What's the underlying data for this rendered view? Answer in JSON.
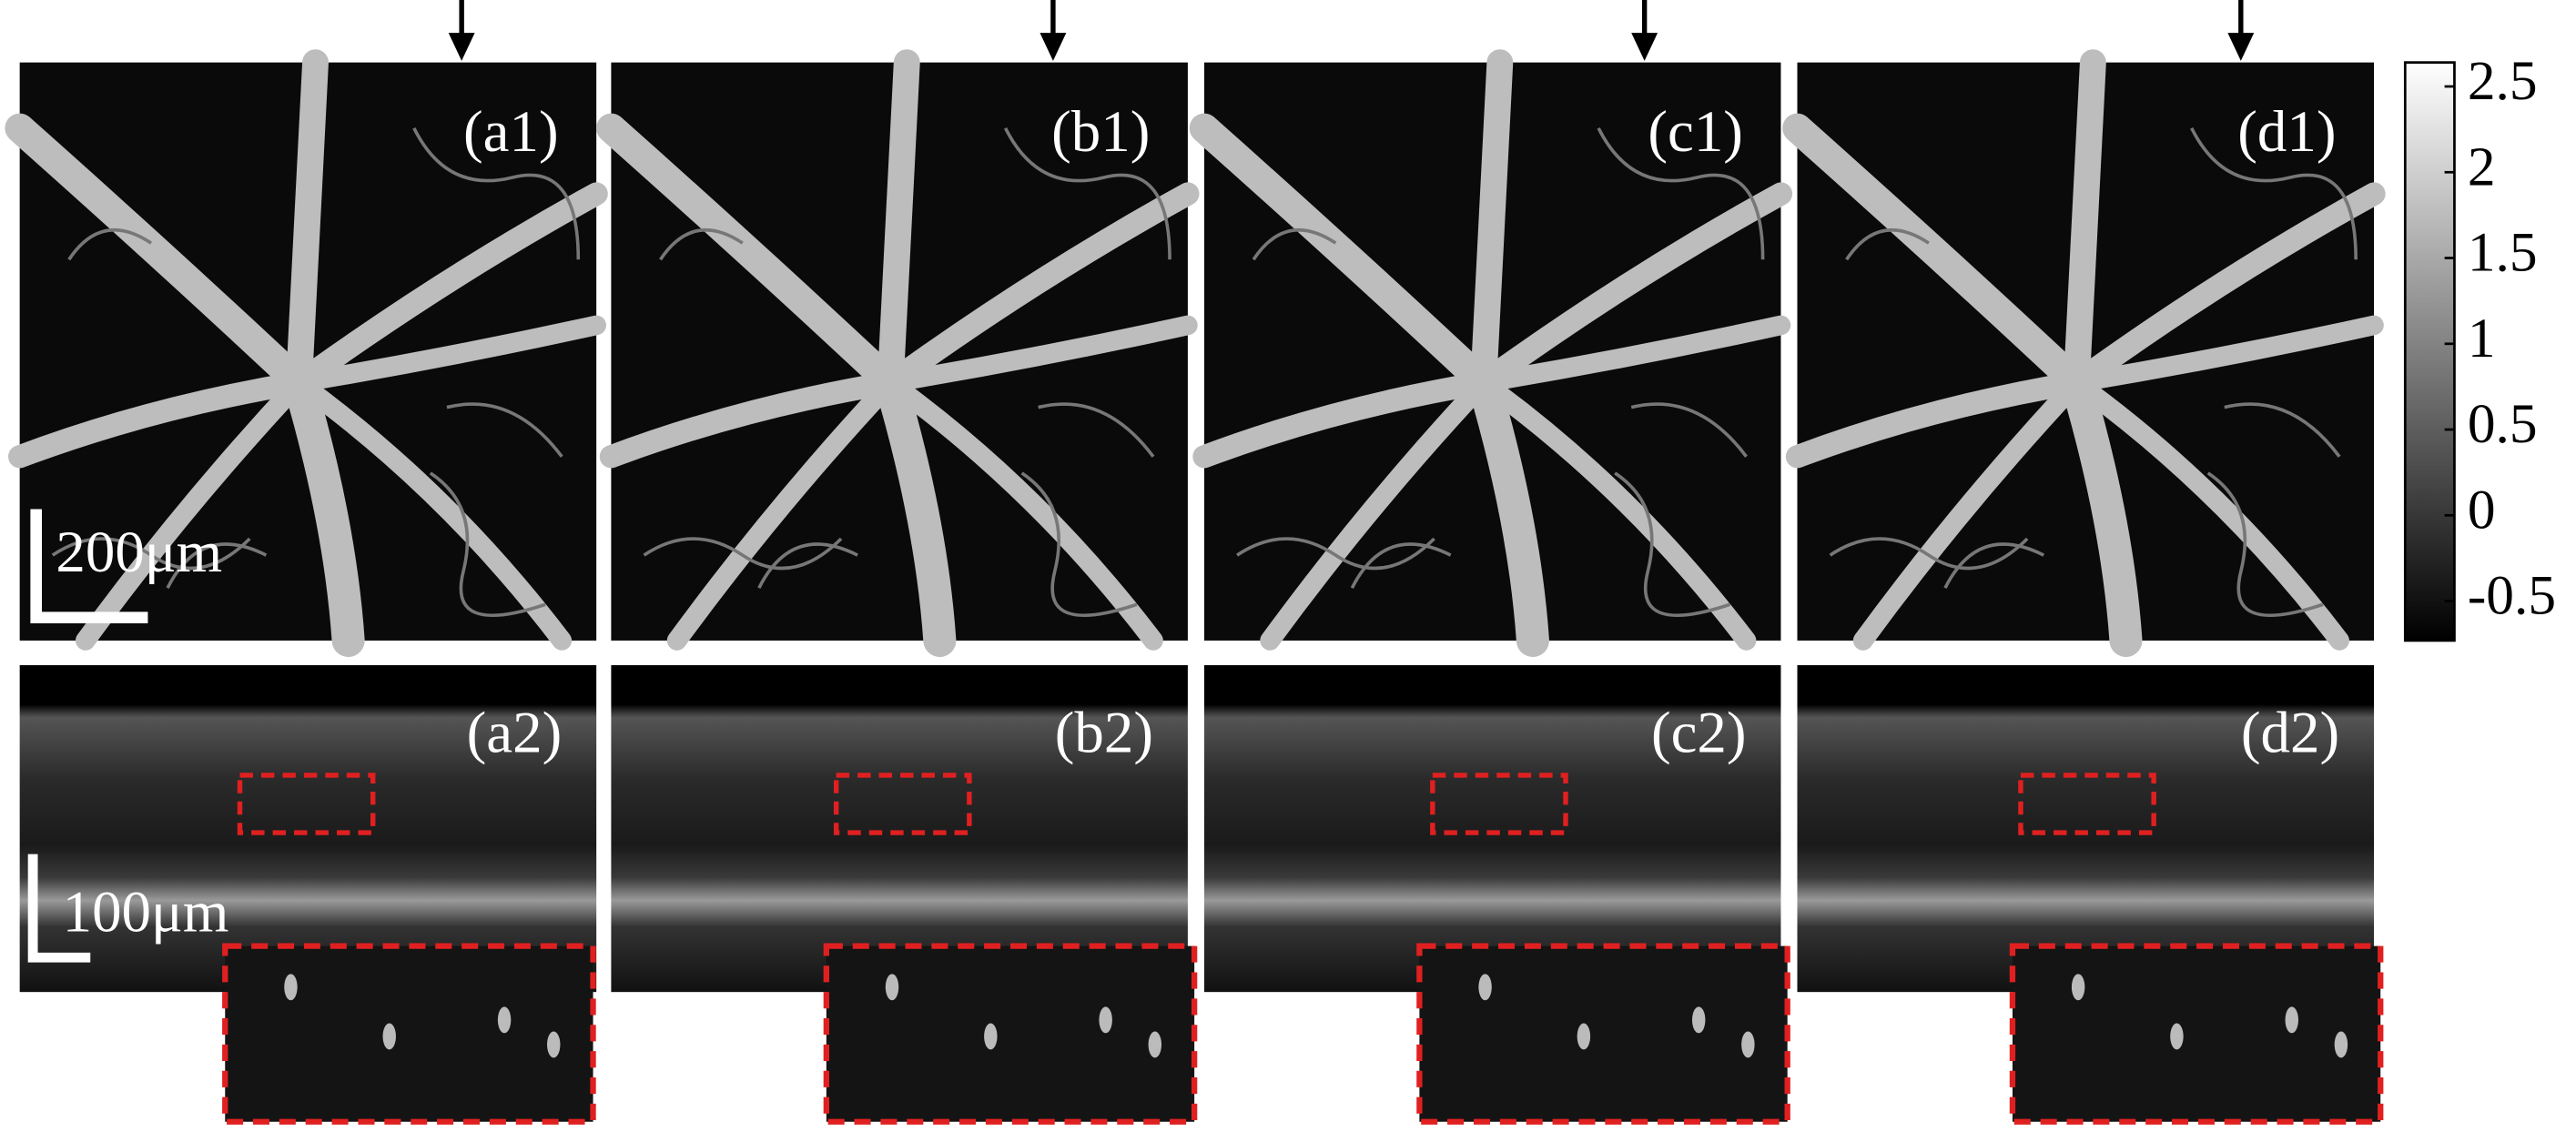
{
  "panels": {
    "top": [
      "(a1)",
      "(b1)",
      "(c1)",
      "(d1)"
    ],
    "bottom": [
      "(a2)",
      "(b2)",
      "(c2)",
      "(d2)"
    ]
  },
  "scale_bars": {
    "top": "200μm",
    "bottom": "100μm"
  },
  "colorbar": {
    "lim": [
      -0.73,
      2.64
    ],
    "ticks": [
      2.5,
      2,
      1.5,
      1,
      0.5,
      0,
      -0.5
    ]
  }
}
